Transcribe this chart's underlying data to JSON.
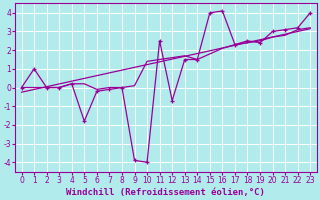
{
  "xlabel": "Windchill (Refroidissement éolien,°C)",
  "background_color": "#b2ebeb",
  "grid_color": "#ffffff",
  "line_color": "#990099",
  "xlim": [
    -0.5,
    23.5
  ],
  "ylim": [
    -4.5,
    4.5
  ],
  "xticks": [
    0,
    1,
    2,
    3,
    4,
    5,
    6,
    7,
    8,
    9,
    10,
    11,
    12,
    13,
    14,
    15,
    16,
    17,
    18,
    19,
    20,
    21,
    22,
    23
  ],
  "yticks": [
    -4,
    -3,
    -2,
    -1,
    0,
    1,
    2,
    3,
    4
  ],
  "line1_x": [
    0,
    1,
    2,
    3,
    4,
    5,
    6,
    7,
    8,
    9,
    10,
    11,
    12,
    13,
    14,
    15,
    16,
    17,
    18,
    19,
    20,
    21,
    22,
    23
  ],
  "line1_y": [
    0.0,
    1.0,
    0.0,
    0.0,
    0.2,
    -1.8,
    -0.2,
    -0.1,
    0.0,
    -3.9,
    -4.0,
    2.5,
    -0.7,
    1.5,
    1.5,
    4.0,
    4.1,
    2.3,
    2.5,
    2.4,
    3.0,
    3.1,
    3.2,
    4.0
  ],
  "line2_x": [
    0,
    1,
    2,
    3,
    4,
    5,
    6,
    7,
    8,
    9,
    10,
    11,
    12,
    13,
    14,
    15,
    16,
    17,
    18,
    19,
    20,
    21,
    22,
    23
  ],
  "line2_y": [
    0.0,
    0.0,
    0.0,
    0.0,
    0.2,
    0.2,
    -0.1,
    0.0,
    0.0,
    0.1,
    1.4,
    1.5,
    1.6,
    1.7,
    1.5,
    1.8,
    2.1,
    2.3,
    2.4,
    2.5,
    2.7,
    2.8,
    3.1,
    3.2
  ],
  "trend_x": [
    0,
    23
  ],
  "trend_y": [
    -0.25,
    3.15
  ],
  "fontsize_xlabel": 6.5,
  "tick_fontsize": 5.5
}
